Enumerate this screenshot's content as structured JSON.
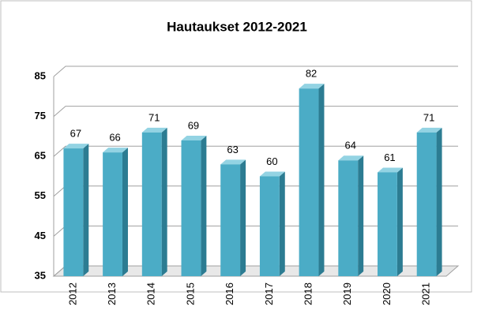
{
  "chart_data": {
    "type": "bar",
    "title": "Hautaukset 2012-2021",
    "categories": [
      "2012",
      "2013",
      "2014",
      "2015",
      "2016",
      "2017",
      "2018",
      "2019",
      "2020",
      "2021"
    ],
    "values": [
      67,
      66,
      71,
      69,
      63,
      60,
      82,
      64,
      61,
      71
    ],
    "color": "#4bacc6",
    "ylim": [
      35,
      85
    ],
    "yticks": [
      35,
      45,
      55,
      65,
      75,
      85
    ],
    "grid": true
  }
}
